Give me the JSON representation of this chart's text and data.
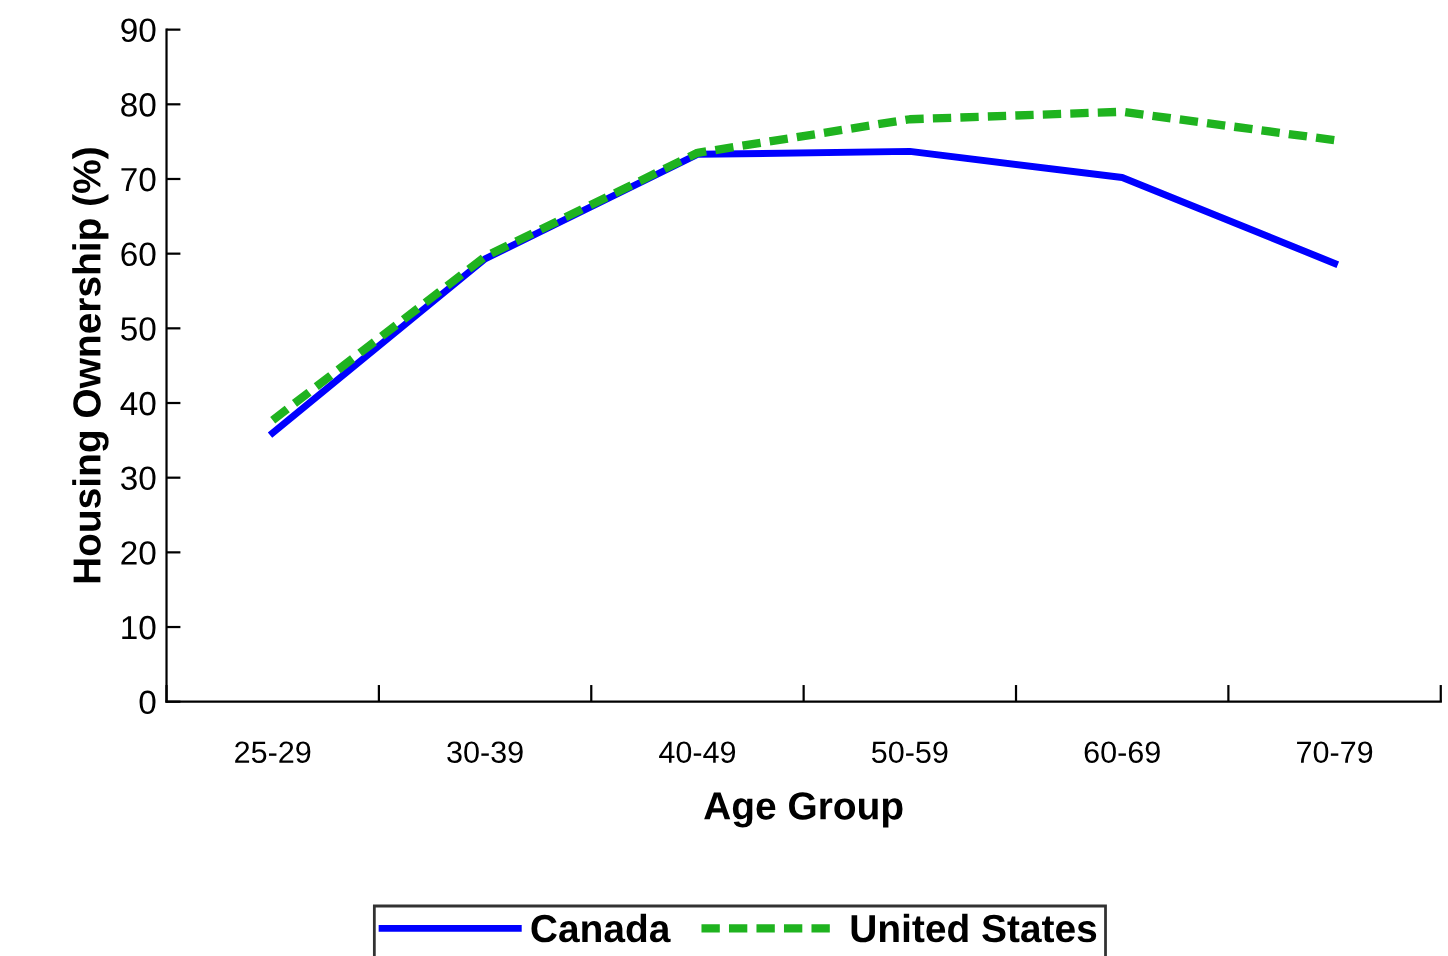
{
  "chart_data": {
    "type": "line",
    "xlabel": "Age Group",
    "ylabel": "Housing Ownership (%)",
    "categories": [
      "25-29",
      "30-39",
      "40-49",
      "50-59",
      "60-69",
      "70-79"
    ],
    "series": [
      {
        "name": "Canada",
        "color": "#0000ff",
        "line_style": "solid",
        "values": [
          36,
          59.3,
          73.3,
          73.7,
          70.2,
          58.7
        ]
      },
      {
        "name": "United States",
        "color": "#1fb31f",
        "line_style": "dashed",
        "values": [
          37.7,
          59.6,
          73.5,
          78,
          79,
          75.2
        ]
      }
    ],
    "ylim": [
      0,
      90
    ],
    "yticks": [
      0,
      10,
      20,
      30,
      40,
      50,
      60,
      70,
      80,
      90
    ],
    "grid": false,
    "legend": "bottom",
    "marker": "none"
  }
}
